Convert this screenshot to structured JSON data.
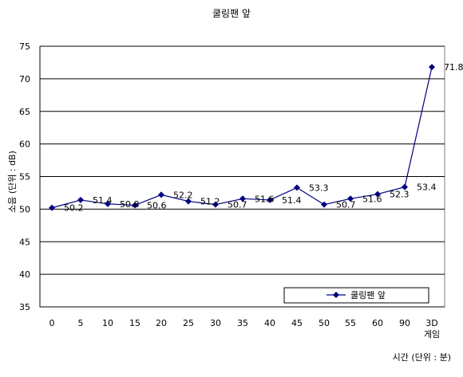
{
  "chart_data": {
    "type": "line",
    "title": "쿨링팬 앞",
    "xlabel": "시간 (단위 : 분)",
    "ylabel": "소음 (단위 : dB)",
    "categories": [
      "0",
      "5",
      "10",
      "15",
      "20",
      "25",
      "30",
      "35",
      "40",
      "45",
      "50",
      "55",
      "60",
      "90",
      "3D\n게임"
    ],
    "series": [
      {
        "name": "쿨링팬 앞",
        "values": [
          50.2,
          51.4,
          50.8,
          50.6,
          52.2,
          51.2,
          50.7,
          51.6,
          51.4,
          53.3,
          50.7,
          51.6,
          52.3,
          53.4,
          71.8
        ],
        "labels": [
          "50.2",
          "51.4",
          "50.8",
          "50.6",
          "52.2",
          "51.2",
          "50.7",
          "51.6",
          "51.4",
          "53.3",
          "50.7",
          "51.6",
          "52.3",
          "53.4",
          "71.8"
        ]
      }
    ],
    "ylim": [
      35,
      75
    ],
    "yticks": [
      35,
      40,
      45,
      50,
      55,
      60,
      65,
      70,
      75
    ],
    "grid": true,
    "legend_position": "bottom-right",
    "colors": {
      "series": "#000080",
      "grid": "#000000"
    }
  }
}
